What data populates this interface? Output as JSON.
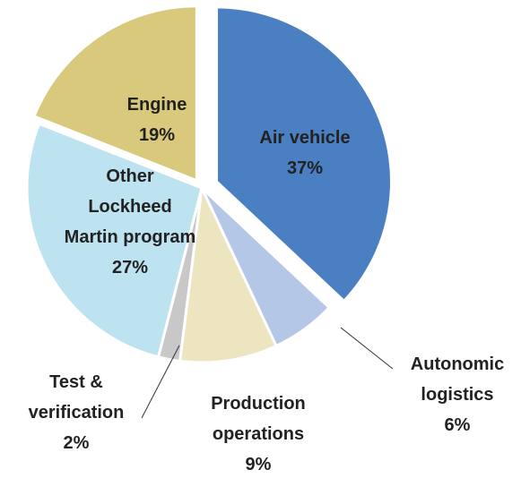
{
  "chart_data": {
    "type": "pie",
    "categories": [
      "Air vehicle",
      "Autonomic logistics",
      "Production operations",
      "Test & verification",
      "Other Lockheed Martin program",
      "Engine"
    ],
    "values": [
      37,
      6,
      9,
      2,
      27,
      19
    ],
    "value_labels": [
      "37%",
      "6%",
      "9%",
      "2%",
      "27%",
      "19%"
    ],
    "colors": [
      "#4a7fc1",
      "#b4c7e7",
      "#ede5bf",
      "#c8c8c8",
      "#bde2f0",
      "#d9c97c"
    ]
  }
}
